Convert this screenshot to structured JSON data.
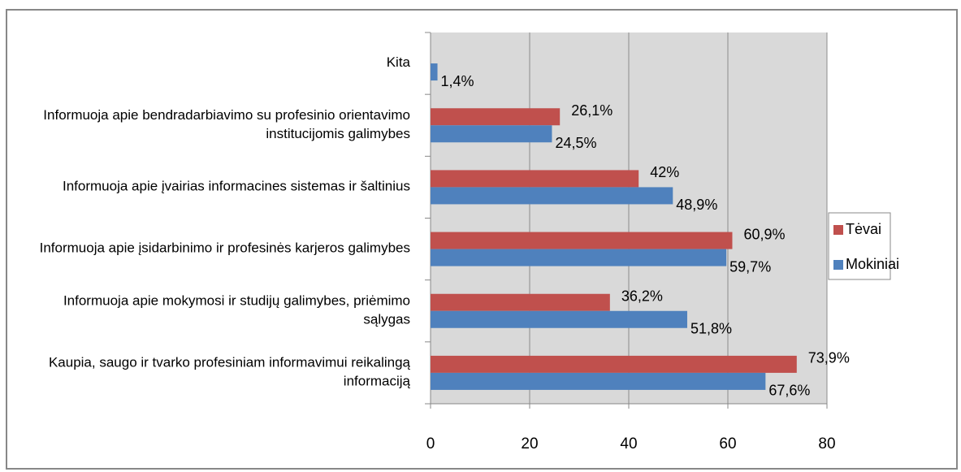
{
  "chart_data": {
    "type": "barh",
    "categories": [
      "Kita",
      "Informuoja apie bendradarbiavimo su profesinio orientavimo institucijomis galimybes",
      "Informuoja apie įvairias informacines sistemas ir šaltinius",
      "Informuoja apie įsidarbinimo ir profesinės karjeros galimybes",
      "Informuoja apie mokymosi ir studijų galimybes, priėmimo sąlygas",
      "Kaupia, saugo ir tvarko profesiniam informavimui reikalingą informaciją"
    ],
    "series": [
      {
        "name": "Tėvai",
        "color": "#c0504d",
        "values": [
          null,
          26.1,
          42,
          60.9,
          36.2,
          73.9
        ],
        "value_labels": [
          null,
          "26,1%",
          "42%",
          "60,9%",
          "36,2%",
          "73,9%"
        ]
      },
      {
        "name": "Mokiniai",
        "color": "#4f81bd",
        "values": [
          1.4,
          24.5,
          48.9,
          59.7,
          51.8,
          67.6
        ],
        "value_labels": [
          "1,4%",
          "24,5%",
          "48,9%",
          "59,7%",
          "51,8%",
          "67,6%"
        ]
      }
    ],
    "xlim": [
      0,
      80
    ],
    "xticks": [
      0,
      20,
      40,
      60,
      80
    ],
    "grid": true,
    "legend": "right"
  }
}
